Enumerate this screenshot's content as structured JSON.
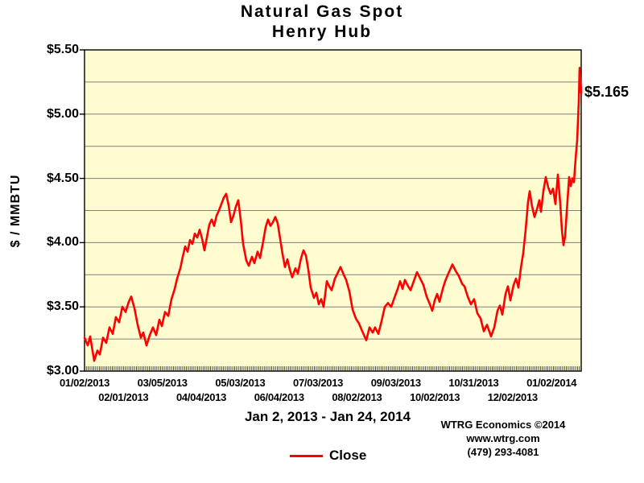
{
  "title": {
    "line1": "Natural Gas Spot",
    "line2": "Henry Hub"
  },
  "subtitle": "Jan 2, 2013 - Jan 24, 2014",
  "annotation": {
    "label": "$5.165"
  },
  "legend": {
    "label": "Close",
    "color": "#ff0000"
  },
  "credit": {
    "line1": "WTRG Economics  ©2014",
    "line2": "www.wtrg.com",
    "line3": "(479) 293-4081"
  },
  "y_axis": {
    "title": "$ / MMBTU",
    "tick_labels": [
      "$5.50",
      "$5.00",
      "$4.50",
      "$4.00",
      "$3.50",
      "$3.00"
    ],
    "max": 5.5,
    "min": 3.0,
    "major_step": 0.5,
    "minor_step": 0.25
  },
  "x_axis": {
    "tick_labels": [
      "01/02/2013",
      "02/01/2013",
      "03/05/2013",
      "04/04/2013",
      "05/03/2013",
      "06/04/2013",
      "07/03/2013",
      "08/02/2013",
      "09/03/2013",
      "10/02/2013",
      "10/31/2013",
      "12/02/2013",
      "01/02/2014"
    ],
    "tick_interval_trading_days": 21
  },
  "chart_data": {
    "type": "line",
    "title": "Natural Gas Spot Henry Hub",
    "xlabel": "",
    "ylabel": "$ / MMBTU",
    "ylim": [
      3.0,
      5.5
    ],
    "grid": "horizontal, every $0.25, gray",
    "plot_bg": "#fffccf",
    "grid_color": "#808080",
    "legend_position": "bottom-center",
    "x_range": {
      "start": "01/02/2013",
      "end": "01/24/2014",
      "trading_days": 268
    },
    "daily_tick_count": 268,
    "last_close": 5.165,
    "series": [
      {
        "name": "Close",
        "color": "#ff0000",
        "points": [
          [
            0.0,
            3.26
          ],
          [
            0.0065,
            3.2
          ],
          [
            0.0113,
            3.27
          ],
          [
            0.0194,
            3.08
          ],
          [
            0.0259,
            3.16
          ],
          [
            0.0308,
            3.13
          ],
          [
            0.0373,
            3.26
          ],
          [
            0.0438,
            3.22
          ],
          [
            0.0502,
            3.34
          ],
          [
            0.0567,
            3.29
          ],
          [
            0.0632,
            3.42
          ],
          [
            0.0697,
            3.38
          ],
          [
            0.0762,
            3.5
          ],
          [
            0.0826,
            3.46
          ],
          [
            0.0891,
            3.54
          ],
          [
            0.094,
            3.58
          ],
          [
            0.1005,
            3.49
          ],
          [
            0.107,
            3.36
          ],
          [
            0.1134,
            3.26
          ],
          [
            0.1183,
            3.3
          ],
          [
            0.1248,
            3.2
          ],
          [
            0.1313,
            3.28
          ],
          [
            0.1377,
            3.34
          ],
          [
            0.1442,
            3.28
          ],
          [
            0.1507,
            3.4
          ],
          [
            0.1556,
            3.35
          ],
          [
            0.1621,
            3.46
          ],
          [
            0.1686,
            3.43
          ],
          [
            0.175,
            3.56
          ],
          [
            0.1815,
            3.64
          ],
          [
            0.1864,
            3.72
          ],
          [
            0.1929,
            3.8
          ],
          [
            0.1977,
            3.89
          ],
          [
            0.2026,
            3.97
          ],
          [
            0.2075,
            3.93
          ],
          [
            0.2123,
            4.02
          ],
          [
            0.2172,
            3.99
          ],
          [
            0.222,
            4.07
          ],
          [
            0.2269,
            4.04
          ],
          [
            0.2318,
            4.1
          ],
          [
            0.2366,
            4.03
          ],
          [
            0.2415,
            3.94
          ],
          [
            0.2464,
            4.04
          ],
          [
            0.2512,
            4.14
          ],
          [
            0.2561,
            4.18
          ],
          [
            0.2609,
            4.13
          ],
          [
            0.2658,
            4.21
          ],
          [
            0.2707,
            4.25
          ],
          [
            0.2755,
            4.3
          ],
          [
            0.2804,
            4.35
          ],
          [
            0.2852,
            4.38
          ],
          [
            0.2901,
            4.29
          ],
          [
            0.295,
            4.16
          ],
          [
            0.2998,
            4.21
          ],
          [
            0.3047,
            4.28
          ],
          [
            0.3096,
            4.33
          ],
          [
            0.3144,
            4.18
          ],
          [
            0.3193,
            3.99
          ],
          [
            0.3258,
            3.86
          ],
          [
            0.3306,
            3.82
          ],
          [
            0.3371,
            3.89
          ],
          [
            0.342,
            3.84
          ],
          [
            0.3485,
            3.93
          ],
          [
            0.3533,
            3.88
          ],
          [
            0.3598,
            4.01
          ],
          [
            0.3647,
            4.12
          ],
          [
            0.3695,
            4.18
          ],
          [
            0.3744,
            4.13
          ],
          [
            0.3792,
            4.16
          ],
          [
            0.3841,
            4.2
          ],
          [
            0.389,
            4.15
          ],
          [
            0.3938,
            4.03
          ],
          [
            0.3987,
            3.91
          ],
          [
            0.4035,
            3.81
          ],
          [
            0.4084,
            3.87
          ],
          [
            0.4133,
            3.79
          ],
          [
            0.4181,
            3.73
          ],
          [
            0.4246,
            3.8
          ],
          [
            0.4295,
            3.76
          ],
          [
            0.436,
            3.88
          ],
          [
            0.4408,
            3.94
          ],
          [
            0.4457,
            3.9
          ],
          [
            0.4506,
            3.79
          ],
          [
            0.4554,
            3.65
          ],
          [
            0.4619,
            3.57
          ],
          [
            0.4668,
            3.61
          ],
          [
            0.4716,
            3.52
          ],
          [
            0.4765,
            3.56
          ],
          [
            0.4814,
            3.5
          ],
          [
            0.4879,
            3.7
          ],
          [
            0.4927,
            3.66
          ],
          [
            0.4976,
            3.63
          ],
          [
            0.504,
            3.72
          ],
          [
            0.5105,
            3.77
          ],
          [
            0.5154,
            3.81
          ],
          [
            0.5219,
            3.75
          ],
          [
            0.5267,
            3.71
          ],
          [
            0.5332,
            3.62
          ],
          [
            0.5397,
            3.48
          ],
          [
            0.5462,
            3.41
          ],
          [
            0.5527,
            3.37
          ],
          [
            0.5591,
            3.31
          ],
          [
            0.5672,
            3.24
          ],
          [
            0.5737,
            3.34
          ],
          [
            0.5802,
            3.3
          ],
          [
            0.585,
            3.34
          ],
          [
            0.5915,
            3.29
          ],
          [
            0.598,
            3.39
          ],
          [
            0.6045,
            3.5
          ],
          [
            0.611,
            3.53
          ],
          [
            0.6175,
            3.5
          ],
          [
            0.6239,
            3.57
          ],
          [
            0.6304,
            3.64
          ],
          [
            0.6353,
            3.7
          ],
          [
            0.6402,
            3.64
          ],
          [
            0.645,
            3.71
          ],
          [
            0.6515,
            3.66
          ],
          [
            0.6564,
            3.63
          ],
          [
            0.6629,
            3.7
          ],
          [
            0.6694,
            3.77
          ],
          [
            0.6758,
            3.72
          ],
          [
            0.6823,
            3.67
          ],
          [
            0.6888,
            3.58
          ],
          [
            0.6953,
            3.52
          ],
          [
            0.7002,
            3.47
          ],
          [
            0.705,
            3.55
          ],
          [
            0.7099,
            3.6
          ],
          [
            0.7148,
            3.54
          ],
          [
            0.7213,
            3.64
          ],
          [
            0.7261,
            3.7
          ],
          [
            0.7326,
            3.76
          ],
          [
            0.7407,
            3.83
          ],
          [
            0.7472,
            3.78
          ],
          [
            0.7537,
            3.74
          ],
          [
            0.7602,
            3.68
          ],
          [
            0.765,
            3.66
          ],
          [
            0.7715,
            3.58
          ],
          [
            0.778,
            3.52
          ],
          [
            0.7845,
            3.56
          ],
          [
            0.791,
            3.45
          ],
          [
            0.7974,
            3.41
          ],
          [
            0.8039,
            3.31
          ],
          [
            0.8104,
            3.36
          ],
          [
            0.8185,
            3.27
          ],
          [
            0.825,
            3.34
          ],
          [
            0.8315,
            3.47
          ],
          [
            0.8363,
            3.51
          ],
          [
            0.8412,
            3.44
          ],
          [
            0.8477,
            3.6
          ],
          [
            0.8525,
            3.66
          ],
          [
            0.8574,
            3.55
          ],
          [
            0.8639,
            3.67
          ],
          [
            0.8687,
            3.72
          ],
          [
            0.8736,
            3.65
          ],
          [
            0.8784,
            3.8
          ],
          [
            0.8833,
            3.92
          ],
          [
            0.8881,
            4.1
          ],
          [
            0.893,
            4.32
          ],
          [
            0.8963,
            4.4
          ],
          [
            0.9011,
            4.28
          ],
          [
            0.906,
            4.2
          ],
          [
            0.9109,
            4.26
          ],
          [
            0.9157,
            4.33
          ],
          [
            0.919,
            4.24
          ],
          [
            0.9238,
            4.4
          ],
          [
            0.9287,
            4.51
          ],
          [
            0.9335,
            4.43
          ],
          [
            0.9384,
            4.38
          ],
          [
            0.9433,
            4.42
          ],
          [
            0.9481,
            4.3
          ],
          [
            0.953,
            4.53
          ],
          [
            0.9579,
            4.3
          ],
          [
            0.9611,
            4.1
          ],
          [
            0.9643,
            3.98
          ],
          [
            0.9676,
            4.05
          ],
          [
            0.9724,
            4.33
          ],
          [
            0.9757,
            4.51
          ],
          [
            0.9789,
            4.44
          ],
          [
            0.9822,
            4.5
          ],
          [
            0.9854,
            4.47
          ],
          [
            0.9887,
            4.65
          ],
          [
            0.9919,
            4.8
          ],
          [
            0.9951,
            5.1
          ],
          [
            0.9968,
            5.36
          ],
          [
            1.0,
            5.165
          ]
        ]
      }
    ]
  }
}
